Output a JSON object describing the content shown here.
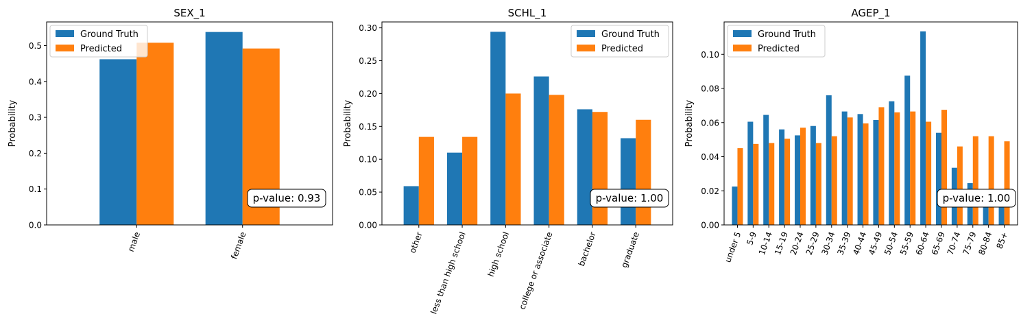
{
  "colors": {
    "ground_truth": "#1f77b4",
    "predicted": "#ff7f0e"
  },
  "chart_data": [
    {
      "type": "bar",
      "title": "SEX_1",
      "ylabel": "Probability",
      "xlabel": "",
      "categories": [
        "male",
        "female"
      ],
      "series": [
        {
          "name": "Ground Truth",
          "values": [
            0.462,
            0.538
          ]
        },
        {
          "name": "Predicted",
          "values": [
            0.508,
            0.492
          ]
        }
      ],
      "ylim": [
        0,
        0.566
      ],
      "yticks": [
        0.0,
        0.1,
        0.2,
        0.3,
        0.4,
        0.5
      ],
      "ytick_labels": [
        "0.0",
        "0.1",
        "0.2",
        "0.3",
        "0.4",
        "0.5"
      ],
      "legend": "upper left",
      "annotation": "p-value: 0.93"
    },
    {
      "type": "bar",
      "title": "SCHL_1",
      "ylabel": "Probability",
      "xlabel": "",
      "categories": [
        "other",
        "less than high school",
        "high school",
        "college or associate",
        "bachelor",
        "graduate"
      ],
      "series": [
        {
          "name": "Ground Truth",
          "values": [
            0.059,
            0.11,
            0.294,
            0.226,
            0.176,
            0.132
          ]
        },
        {
          "name": "Predicted",
          "values": [
            0.134,
            0.134,
            0.2,
            0.198,
            0.172,
            0.16
          ]
        }
      ],
      "ylim": [
        0,
        0.309
      ],
      "yticks": [
        0.0,
        0.05,
        0.1,
        0.15,
        0.2,
        0.25,
        0.3
      ],
      "ytick_labels": [
        "0.00",
        "0.05",
        "0.10",
        "0.15",
        "0.20",
        "0.25",
        "0.30"
      ],
      "legend": "upper right",
      "annotation": "p-value: 1.00"
    },
    {
      "type": "bar",
      "title": "AGEP_1",
      "ylabel": "Probability",
      "xlabel": "",
      "categories": [
        "under 5",
        "5-9",
        "10-14",
        "15-19",
        "20-24",
        "25-29",
        "30-34",
        "35-39",
        "40-44",
        "45-49",
        "50-54",
        "55-59",
        "60-64",
        "65-69",
        "70-74",
        "75-79",
        "80-84",
        "85+"
      ],
      "series": [
        {
          "name": "Ground Truth",
          "values": [
            0.0225,
            0.0605,
            0.0645,
            0.056,
            0.0525,
            0.058,
            0.076,
            0.0665,
            0.065,
            0.0615,
            0.0725,
            0.0875,
            0.1135,
            0.054,
            0.0335,
            0.0245,
            0.0155,
            0.0135
          ]
        },
        {
          "name": "Predicted",
          "values": [
            0.045,
            0.0475,
            0.048,
            0.0505,
            0.057,
            0.048,
            0.052,
            0.063,
            0.0595,
            0.069,
            0.066,
            0.0665,
            0.0605,
            0.0675,
            0.046,
            0.052,
            0.052,
            0.049
          ]
        }
      ],
      "ylim": [
        0,
        0.119
      ],
      "yticks": [
        0.0,
        0.02,
        0.04,
        0.06,
        0.08,
        0.1
      ],
      "ytick_labels": [
        "0.00",
        "0.02",
        "0.04",
        "0.06",
        "0.08",
        "0.10"
      ],
      "legend": "upper left",
      "annotation": "p-value: 1.00"
    }
  ]
}
